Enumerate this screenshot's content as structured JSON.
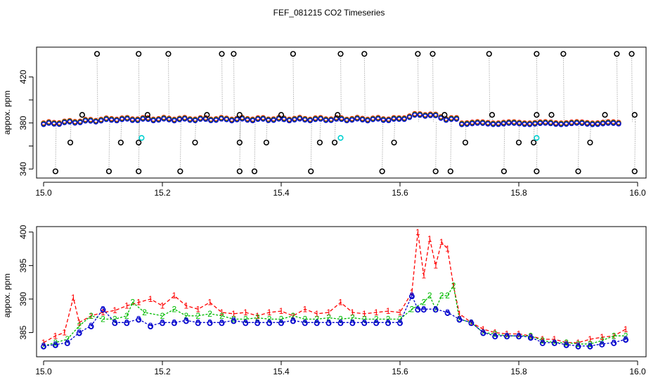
{
  "chart_data": [
    {
      "type": "scatter",
      "panel": "top",
      "title": "FEF_081215  CO2 Timeseries",
      "xlabel": "",
      "ylabel": "appox. ppm",
      "xlim": [
        15.0,
        16.0
      ],
      "ylim": [
        334,
        444
      ],
      "xticks": [
        15.0,
        15.2,
        15.4,
        15.6,
        15.8,
        16.0
      ],
      "yticks": [
        340,
        360,
        380,
        400,
        420
      ],
      "ytick_labels": [
        "340",
        "",
        "380",
        "",
        "420"
      ],
      "legend": "none",
      "series": [
        {
          "name": "black-outlier-high",
          "color": "#000000",
          "x": [
            15.09,
            15.16,
            15.21,
            15.3,
            15.32,
            15.42,
            15.5,
            15.54,
            15.63,
            15.655,
            15.75,
            15.83,
            15.875,
            15.965,
            15.99
          ],
          "y": [
            440,
            440,
            440,
            440,
            440,
            440,
            440,
            440,
            440,
            440,
            440,
            440,
            440,
            440,
            440
          ]
        },
        {
          "name": "black-outlier-low",
          "color": "#000000",
          "x": [
            15.02,
            15.11,
            15.16,
            15.23,
            15.33,
            15.355,
            15.45,
            15.57,
            15.66,
            15.685,
            15.775,
            15.83,
            15.9,
            15.995
          ],
          "y": [
            338,
            338,
            338,
            338,
            338,
            338,
            338,
            338,
            338,
            338,
            338,
            338,
            338,
            338
          ]
        },
        {
          "name": "black-outlier-mid",
          "color": "#000000",
          "x": [
            15.045,
            15.13,
            15.16,
            15.255,
            15.33,
            15.375,
            15.465,
            15.49,
            15.59,
            15.71,
            15.8,
            15.825,
            15.92
          ],
          "y": [
            363,
            363,
            363,
            363,
            363,
            363,
            363,
            363,
            363,
            363,
            363,
            363,
            363
          ]
        },
        {
          "name": "black-upper",
          "color": "#000000",
          "x": [
            15.065,
            15.175,
            15.275,
            15.33,
            15.4,
            15.495,
            15.675,
            15.755,
            15.83,
            15.855,
            15.945,
            15.995
          ],
          "y": [
            387,
            387,
            387,
            387,
            387,
            387,
            387,
            387,
            387,
            387,
            387,
            387
          ]
        },
        {
          "name": "cyan",
          "color": "#00d0d0",
          "x": [
            15.165,
            15.5,
            15.83
          ],
          "y": [
            367,
            367,
            367
          ]
        }
      ]
    },
    {
      "type": "line",
      "panel": "bottom",
      "title": "",
      "xlabel": "",
      "ylabel": "appox. ppm",
      "xlim": [
        15.0,
        16.0
      ],
      "ylim": [
        381.7,
        400.5
      ],
      "xticks": [
        15.0,
        15.2,
        15.4,
        15.6,
        15.8,
        16.0
      ],
      "yticks": [
        385,
        390,
        395,
        400
      ],
      "legend": "none",
      "series": [
        {
          "name": "1",
          "color": "#ff0000",
          "x": [
            15.0,
            15.02,
            15.035,
            15.05,
            15.06,
            15.08,
            15.1,
            15.12,
            15.14,
            15.16,
            15.18,
            15.2,
            15.22,
            15.24,
            15.26,
            15.28,
            15.3,
            15.32,
            15.34,
            15.36,
            15.38,
            15.4,
            15.42,
            15.44,
            15.46,
            15.48,
            15.5,
            15.52,
            15.54,
            15.56,
            15.58,
            15.6,
            15.62,
            15.63,
            15.64,
            15.65,
            15.66,
            15.67,
            15.68,
            15.69,
            15.7,
            15.72,
            15.74,
            15.76,
            15.78,
            15.8,
            15.82,
            15.84,
            15.86,
            15.88,
            15.9,
            15.92,
            15.94,
            15.96,
            15.98
          ],
          "y": [
            383.5,
            384.5,
            385.0,
            390.2,
            386.5,
            387.5,
            388.0,
            388.3,
            389.0,
            389.5,
            390.0,
            389.0,
            390.5,
            389.0,
            388.5,
            389.5,
            388.0,
            387.8,
            388.0,
            387.5,
            388.0,
            388.2,
            387.5,
            388.5,
            387.8,
            388.0,
            389.5,
            388.0,
            387.8,
            388.0,
            388.2,
            388.0,
            391.0,
            400.0,
            393.5,
            399.0,
            395.0,
            398.5,
            397.5,
            392.0,
            387.8,
            386.5,
            385.5,
            385.0,
            384.8,
            384.8,
            384.5,
            384.0,
            384.0,
            383.5,
            383.5,
            384.0,
            384.3,
            384.5,
            385.5
          ]
        },
        {
          "name": "2",
          "color": "#00bb00",
          "x": [
            15.0,
            15.02,
            15.04,
            15.06,
            15.08,
            15.1,
            15.12,
            15.14,
            15.15,
            15.17,
            15.2,
            15.22,
            15.24,
            15.26,
            15.28,
            15.3,
            15.32,
            15.34,
            15.36,
            15.38,
            15.4,
            15.42,
            15.44,
            15.46,
            15.48,
            15.5,
            15.52,
            15.54,
            15.56,
            15.58,
            15.6,
            15.62,
            15.64,
            15.65,
            15.66,
            15.67,
            15.68,
            15.69,
            15.7,
            15.72,
            15.74,
            15.76,
            15.78,
            15.8,
            15.82,
            15.84,
            15.86,
            15.88,
            15.9,
            15.92,
            15.94,
            15.96,
            15.98
          ],
          "y": [
            383.0,
            383.5,
            384.0,
            386.0,
            387.5,
            387.0,
            387.0,
            387.5,
            389.5,
            388.0,
            387.5,
            388.5,
            387.5,
            387.5,
            387.8,
            387.5,
            387.0,
            387.0,
            387.2,
            387.0,
            387.0,
            387.5,
            387.0,
            387.0,
            387.2,
            387.0,
            387.2,
            387.0,
            387.0,
            387.0,
            387.0,
            388.5,
            389.5,
            390.5,
            388.5,
            390.5,
            390.5,
            392.0,
            387.0,
            386.5,
            385.0,
            384.8,
            384.5,
            384.5,
            384.5,
            383.8,
            383.5,
            383.5,
            383.3,
            383.3,
            383.8,
            384.5,
            384.5
          ]
        },
        {
          "name": "3",
          "color": "#0000cc",
          "x": [
            15.0,
            15.02,
            15.04,
            15.06,
            15.08,
            15.1,
            15.12,
            15.14,
            15.16,
            15.18,
            15.2,
            15.22,
            15.24,
            15.26,
            15.28,
            15.3,
            15.32,
            15.34,
            15.36,
            15.38,
            15.4,
            15.42,
            15.44,
            15.46,
            15.48,
            15.5,
            15.52,
            15.54,
            15.56,
            15.58,
            15.6,
            15.62,
            15.63,
            15.64,
            15.66,
            15.68,
            15.7,
            15.72,
            15.74,
            15.76,
            15.78,
            15.8,
            15.82,
            15.84,
            15.86,
            15.88,
            15.9,
            15.92,
            15.94,
            15.96,
            15.98
          ],
          "y": [
            383.0,
            383.2,
            383.5,
            385.0,
            386.0,
            388.5,
            386.5,
            386.5,
            387.0,
            386.0,
            386.5,
            386.5,
            386.8,
            386.5,
            386.5,
            386.5,
            386.8,
            386.5,
            386.5,
            386.5,
            386.5,
            386.8,
            386.5,
            386.5,
            386.5,
            386.5,
            386.5,
            386.5,
            386.5,
            386.5,
            386.5,
            390.5,
            388.5,
            388.5,
            388.5,
            388.0,
            387.0,
            386.5,
            385.0,
            384.5,
            384.5,
            384.5,
            384.3,
            383.5,
            383.5,
            383.2,
            383.0,
            383.0,
            383.3,
            383.5,
            384.0
          ]
        }
      ]
    }
  ]
}
